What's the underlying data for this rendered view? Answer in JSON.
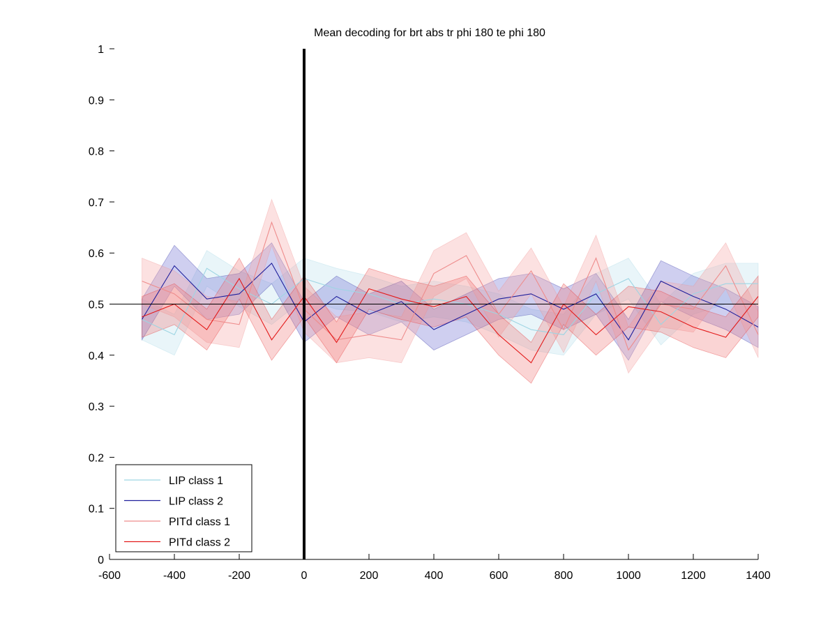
{
  "chart_data": {
    "type": "line",
    "title": "Mean decoding for brt abs tr phi 180 te phi 180",
    "xlabel": "",
    "ylabel": "",
    "xlim": [
      -600,
      1400
    ],
    "ylim": [
      0,
      1
    ],
    "x_ticks": [
      -600,
      -400,
      -200,
      0,
      200,
      400,
      600,
      800,
      1000,
      1200,
      1400
    ],
    "x_tick_labels": [
      "-600",
      "-400",
      "-200",
      "0",
      "200",
      "400",
      "600",
      "800",
      "1000",
      "1200",
      "1400"
    ],
    "y_ticks": [
      0,
      0.1,
      0.2,
      0.3,
      0.4,
      0.5,
      0.6,
      0.7,
      0.8,
      0.9,
      1
    ],
    "y_tick_labels": [
      "0",
      "0.1",
      "0.2",
      "0.3",
      "0.4",
      "0.5",
      "0.6",
      "0.7",
      "0.8",
      "0.9",
      "1"
    ],
    "grid": false,
    "legend_position": "bottom-left",
    "reference_lines": {
      "chance_level": 0.5,
      "event_time": 0
    },
    "x": [
      -500,
      -400,
      -300,
      -200,
      -100,
      0,
      100,
      200,
      300,
      400,
      500,
      600,
      700,
      800,
      900,
      1000,
      1100,
      1200,
      1300,
      1400
    ],
    "series": [
      {
        "name": "LIP class 1",
        "line_color": "#9ed5e3",
        "band_color": "#cfe9f2",
        "band_opacity": 0.45,
        "values": [
          0.47,
          0.44,
          0.57,
          0.53,
          0.5,
          0.55,
          0.53,
          0.52,
          0.5,
          0.51,
          0.5,
          0.48,
          0.45,
          0.44,
          0.52,
          0.55,
          0.46,
          0.52,
          0.54,
          0.54
        ],
        "ci_half_width": [
          0.04,
          0.04,
          0.035,
          0.035,
          0.04,
          0.04,
          0.04,
          0.035,
          0.035,
          0.035,
          0.035,
          0.04,
          0.04,
          0.04,
          0.04,
          0.04,
          0.04,
          0.04,
          0.04,
          0.04
        ]
      },
      {
        "name": "LIP class 2",
        "line_color": "#1f1f9c",
        "band_color": "#6a6acf",
        "band_opacity": 0.32,
        "values": [
          0.47,
          0.575,
          0.51,
          0.52,
          0.58,
          0.465,
          0.515,
          0.48,
          0.505,
          0.45,
          0.48,
          0.51,
          0.52,
          0.49,
          0.52,
          0.43,
          0.545,
          0.515,
          0.49,
          0.455
        ],
        "ci_half_width": [
          0.04,
          0.04,
          0.04,
          0.04,
          0.04,
          0.04,
          0.04,
          0.04,
          0.04,
          0.04,
          0.04,
          0.04,
          0.04,
          0.04,
          0.04,
          0.04,
          0.04,
          0.04,
          0.04,
          0.04
        ]
      },
      {
        "name": "PITd class 1",
        "line_color": "#ee8c8c",
        "band_color": "#f5a8a8",
        "band_opacity": 0.35,
        "values": [
          0.545,
          0.52,
          0.47,
          0.46,
          0.66,
          0.49,
          0.43,
          0.44,
          0.43,
          0.56,
          0.595,
          0.48,
          0.565,
          0.45,
          0.59,
          0.41,
          0.5,
          0.49,
          0.575,
          0.44
        ],
        "ci_half_width": [
          0.045,
          0.045,
          0.045,
          0.045,
          0.045,
          0.045,
          0.045,
          0.045,
          0.045,
          0.045,
          0.045,
          0.045,
          0.045,
          0.045,
          0.045,
          0.045,
          0.045,
          0.045,
          0.045,
          0.045
        ]
      },
      {
        "name": "PITd class 2",
        "line_color": "#e31a1a",
        "band_color": "#f07a7a",
        "band_opacity": 0.32,
        "values": [
          0.475,
          0.5,
          0.45,
          0.55,
          0.43,
          0.515,
          0.425,
          0.53,
          0.51,
          0.495,
          0.515,
          0.44,
          0.385,
          0.5,
          0.44,
          0.495,
          0.485,
          0.455,
          0.435,
          0.515
        ],
        "ci_half_width": [
          0.04,
          0.04,
          0.04,
          0.04,
          0.04,
          0.04,
          0.04,
          0.04,
          0.04,
          0.04,
          0.04,
          0.04,
          0.04,
          0.04,
          0.04,
          0.04,
          0.04,
          0.04,
          0.04,
          0.04
        ]
      }
    ]
  }
}
